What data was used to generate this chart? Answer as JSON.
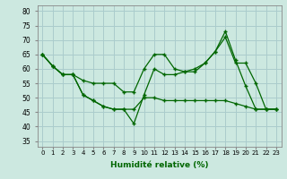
{
  "title": "",
  "xlabel": "Humidité relative (%)",
  "ylabel": "",
  "background_color": "#cce8e0",
  "grid_color": "#aacccc",
  "line_color": "#006600",
  "marker_color": "#006600",
  "xlim": [
    -0.5,
    23.5
  ],
  "ylim": [
    33,
    82
  ],
  "yticks": [
    35,
    40,
    45,
    50,
    55,
    60,
    65,
    70,
    75,
    80
  ],
  "xtick_labels": [
    "0",
    "1",
    "2",
    "3",
    "4",
    "5",
    "6",
    "7",
    "8",
    "9",
    "10",
    "11",
    "12",
    "13",
    "14",
    "15",
    "16",
    "17",
    "18",
    "19",
    "20",
    "21",
    "22",
    "23"
  ],
  "series": [
    [
      65,
      61,
      58,
      58,
      56,
      55,
      55,
      55,
      52,
      52,
      60,
      65,
      65,
      60,
      59,
      60,
      62,
      66,
      71,
      62,
      62,
      55,
      46,
      46
    ],
    [
      65,
      61,
      58,
      58,
      51,
      49,
      47,
      46,
      46,
      41,
      51,
      60,
      58,
      58,
      59,
      59,
      62,
      66,
      73,
      63,
      54,
      46,
      46,
      46
    ],
    [
      65,
      61,
      58,
      58,
      51,
      49,
      47,
      46,
      46,
      46,
      50,
      50,
      49,
      49,
      49,
      49,
      49,
      49,
      49,
      48,
      47,
      46,
      46,
      46
    ]
  ]
}
